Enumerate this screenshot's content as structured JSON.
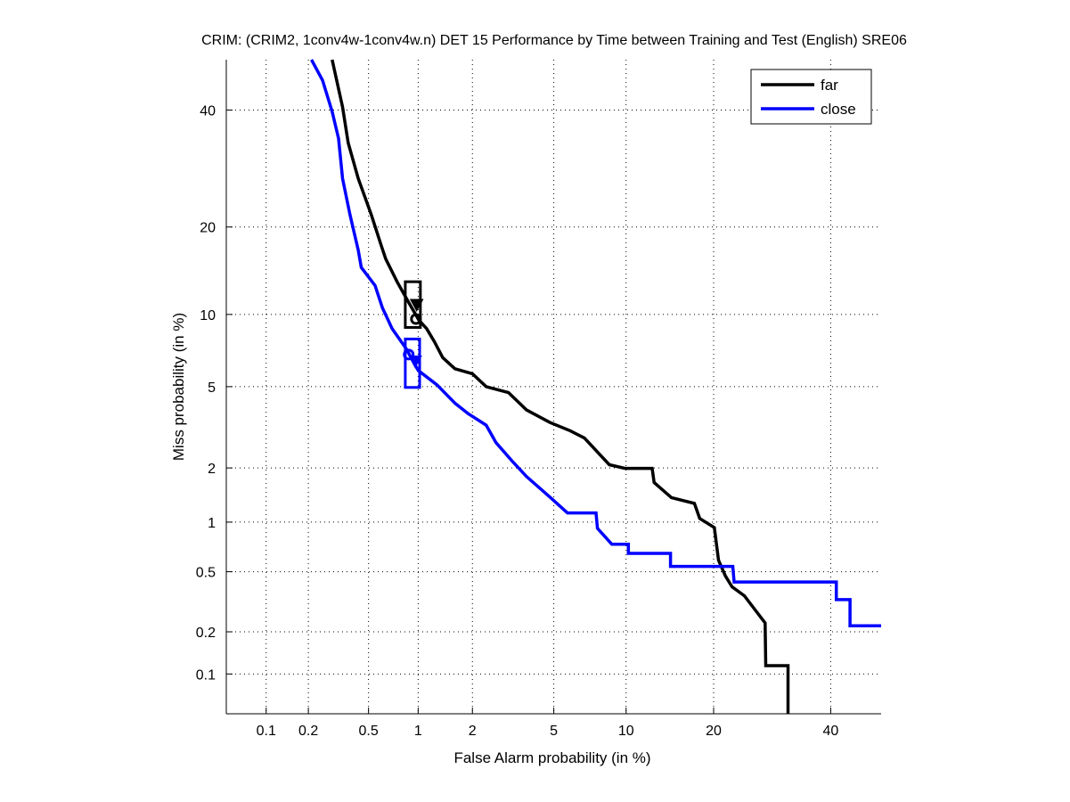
{
  "chart_data": {
    "type": "line",
    "title": "CRIM: (CRIM2, 1conv4w-1conv4w.n) DET 15 Performance by Time between Training and Test (English) SRE06",
    "xlabel": "False Alarm probability (in %)",
    "ylabel": "Miss probability (in %)",
    "scale": "probit",
    "xlim": [
      0.05,
      50
    ],
    "ylim": [
      0.05,
      50
    ],
    "grid": true,
    "legend_position": "top-right",
    "xticks": [
      0.1,
      0.2,
      0.5,
      1,
      2,
      5,
      10,
      20,
      40
    ],
    "xtick_labels": [
      "0.1",
      "0.2",
      "0.5",
      "1",
      "2",
      "5",
      "10",
      "20",
      "40"
    ],
    "yticks": [
      0.1,
      0.2,
      0.5,
      1,
      2,
      5,
      10,
      20,
      40
    ],
    "ytick_labels": [
      "0.1",
      "0.2",
      "0.5",
      "1",
      "2",
      "5",
      "10",
      "20",
      "40"
    ],
    "series": [
      {
        "name": "far",
        "color": "#000000",
        "points": [
          [
            0.29,
            50
          ],
          [
            0.34,
            40.6
          ],
          [
            0.37,
            33.8
          ],
          [
            0.43,
            27.5
          ],
          [
            0.52,
            21.8
          ],
          [
            0.6,
            17.5
          ],
          [
            0.64,
            15.8
          ],
          [
            0.75,
            13.2
          ],
          [
            0.88,
            11.1
          ],
          [
            1.01,
            9.5
          ],
          [
            1.12,
            8.8
          ],
          [
            1.24,
            7.8
          ],
          [
            1.38,
            6.7
          ],
          [
            1.61,
            6.0
          ],
          [
            2.0,
            5.7
          ],
          [
            2.36,
            5.0
          ],
          [
            3.06,
            4.7
          ],
          [
            3.74,
            3.9
          ],
          [
            4.8,
            3.4
          ],
          [
            5.9,
            3.1
          ],
          [
            6.8,
            2.85
          ],
          [
            8.6,
            2.08
          ],
          [
            9.9,
            1.99
          ],
          [
            12.5,
            1.99
          ],
          [
            12.7,
            1.67
          ],
          [
            14.6,
            1.38
          ],
          [
            17.4,
            1.28
          ],
          [
            18.1,
            1.05
          ],
          [
            20.1,
            0.93
          ],
          [
            20.7,
            0.59
          ],
          [
            21.7,
            0.47
          ],
          [
            22.7,
            0.4
          ],
          [
            24.6,
            0.35
          ],
          [
            28.0,
            0.23
          ],
          [
            28.1,
            0.115
          ],
          [
            32.0,
            0.115
          ],
          [
            32.0,
            0.05
          ]
        ],
        "dcf_box": {
          "x": [
            0.84,
            1.03
          ],
          "y": [
            8.9,
            13.2
          ]
        },
        "min_dcf_marker": [
          0.98,
          10.8
        ],
        "act_dcf_marker": [
          0.97,
          9.6
        ]
      },
      {
        "name": "close",
        "color": "#0000ff",
        "points": [
          [
            0.21,
            50
          ],
          [
            0.25,
            45.9
          ],
          [
            0.29,
            39.7
          ],
          [
            0.32,
            34.6
          ],
          [
            0.34,
            27.5
          ],
          [
            0.38,
            21.8
          ],
          [
            0.43,
            16.9
          ],
          [
            0.45,
            14.8
          ],
          [
            0.55,
            12.8
          ],
          [
            0.61,
            10.6
          ],
          [
            0.7,
            8.8
          ],
          [
            0.85,
            7.3
          ],
          [
            1.0,
            5.9
          ],
          [
            1.28,
            5.1
          ],
          [
            1.61,
            4.2
          ],
          [
            1.9,
            3.75
          ],
          [
            2.36,
            3.3
          ],
          [
            2.65,
            2.7
          ],
          [
            3.19,
            2.17
          ],
          [
            3.74,
            1.8
          ],
          [
            4.8,
            1.39
          ],
          [
            5.75,
            1.13
          ],
          [
            7.6,
            1.13
          ],
          [
            7.7,
            0.92
          ],
          [
            8.8,
            0.74
          ],
          [
            10.2,
            0.74
          ],
          [
            10.2,
            0.65
          ],
          [
            14.5,
            0.65
          ],
          [
            14.5,
            0.54
          ],
          [
            22.8,
            0.54
          ],
          [
            23.0,
            0.43
          ],
          [
            41.1,
            0.43
          ],
          [
            41.1,
            0.33
          ],
          [
            43.8,
            0.33
          ],
          [
            43.8,
            0.22
          ],
          [
            50,
            0.22
          ]
        ],
        "dcf_box": {
          "x": [
            0.84,
            1.02
          ],
          "y": [
            4.96,
            8.0
          ]
        },
        "min_dcf_marker": [
          0.96,
          6.4
        ],
        "act_dcf_marker": [
          0.88,
          6.9
        ]
      }
    ]
  }
}
